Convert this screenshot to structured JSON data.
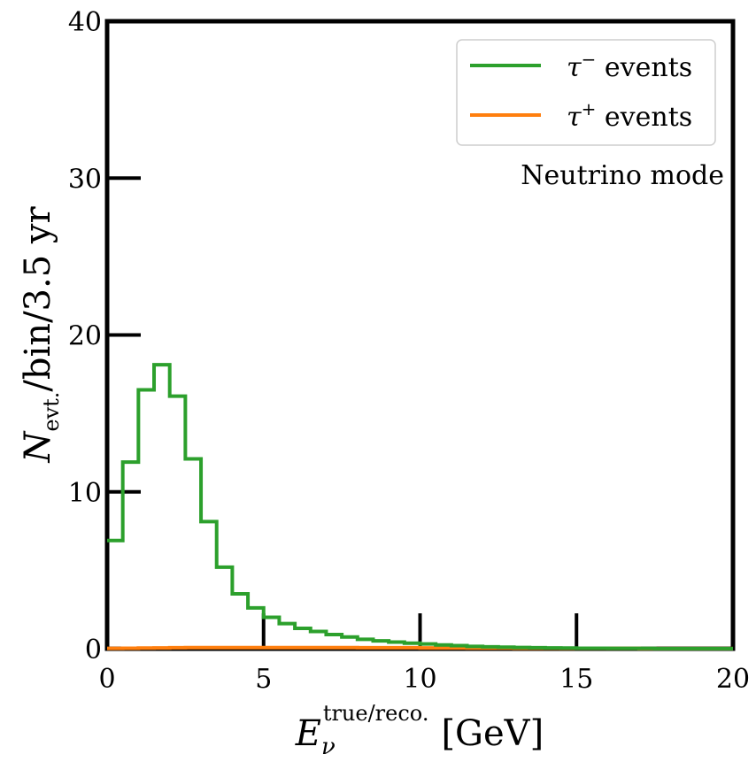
{
  "chart_data": {
    "type": "line",
    "style": "step-histogram",
    "xlabel": {
      "main": "E",
      "sub": "ν",
      "sup": "true/reco.",
      "unit": "[GeV]"
    },
    "ylabel": {
      "main": "N",
      "sub": "evt.",
      "rest": "/bin/3.5 yr"
    },
    "xlim": [
      0,
      20
    ],
    "ylim": [
      0,
      40
    ],
    "x_ticks": [
      "0",
      "5",
      "10",
      "15",
      "20"
    ],
    "y_ticks": [
      "0",
      "10",
      "20",
      "30",
      "40"
    ],
    "grid": false,
    "legend_placement": "top-right",
    "annotation": "Neutrino mode",
    "bin_edges": [
      0,
      0.5,
      1,
      1.5,
      2,
      2.5,
      3,
      3.5,
      4,
      4.5,
      5,
      5.5,
      6,
      6.5,
      7,
      7.5,
      8,
      8.5,
      9,
      9.5,
      10,
      10.5,
      11,
      11.5,
      12,
      12.5,
      13,
      13.5,
      14,
      14.5,
      15,
      15.5,
      16,
      16.5,
      17,
      17.5,
      18,
      18.5,
      19,
      19.5,
      20
    ],
    "series": [
      {
        "name": "τ⁻ events",
        "label_base": "τ",
        "label_sup": "−",
        "label_rest": " events",
        "color": "#2ca02c",
        "values": [
          6.9,
          11.9,
          16.5,
          18.1,
          16.1,
          12.1,
          8.1,
          5.2,
          3.5,
          2.6,
          2.0,
          1.6,
          1.3,
          1.1,
          0.9,
          0.75,
          0.6,
          0.5,
          0.42,
          0.35,
          0.3,
          0.24,
          0.2,
          0.15,
          0.12,
          0.1,
          0.08,
          0.06,
          0.05,
          0.04,
          0.03,
          0.03,
          0.02,
          0.02,
          0.02,
          0.01,
          0.01,
          0.01,
          0.01,
          0.01
        ]
      },
      {
        "name": "τ⁺ events",
        "label_base": "τ",
        "label_sup": "+",
        "label_rest": " events",
        "color": "#ff7f0e",
        "values": [
          0.02,
          0.03,
          0.04,
          0.05,
          0.06,
          0.07,
          0.07,
          0.07,
          0.07,
          0.07,
          0.07,
          0.07,
          0.07,
          0.07,
          0.07,
          0.07,
          0.06,
          0.06,
          0.06,
          0.06,
          0.05,
          0.05,
          0.05,
          0.04,
          0.04,
          0.04,
          0.03,
          0.03,
          0.03,
          0.02,
          0.02,
          0.02,
          0.02,
          0.02,
          0.01,
          0.01,
          0.01,
          0.01,
          0.01,
          0.01
        ]
      }
    ]
  }
}
